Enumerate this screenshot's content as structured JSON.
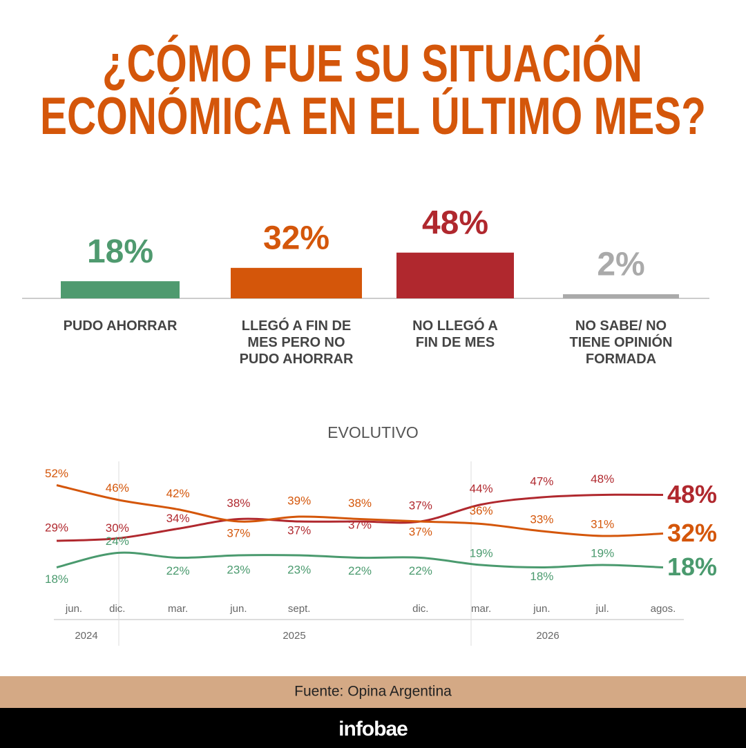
{
  "title": [
    "¿CÓMO FUE SU SITUACIÓN",
    "ECONÓMICA EN EL ÚLTIMO MES?"
  ],
  "chart_data": [
    {
      "type": "bar",
      "categories": [
        "PUDO AHORRAR",
        "LLEGÓ A FIN DE MES PERO NO PUDO AHORRAR",
        "NO LLEGÓ A FIN DE MES",
        "NO SABE/ NO TIENE OPINIÓN FORMADA"
      ],
      "values": [
        18,
        32,
        48,
        2
      ],
      "value_labels": [
        "18%",
        "32%",
        "48%",
        "2%"
      ],
      "colors": [
        "#4f9a6f",
        "#d4560a",
        "#b0282e",
        "#aaaaaa"
      ],
      "ylim": [
        0,
        50
      ]
    },
    {
      "type": "line",
      "title": "EVOLUTIVO",
      "categories": [
        "jun.",
        "dic.",
        "mar.",
        "jun.",
        "sept.",
        null,
        "dic.",
        "mar.",
        "jun.",
        "jul.",
        "agos."
      ],
      "years": [
        "2024",
        "2025",
        "2026"
      ],
      "ylim": [
        15,
        55
      ],
      "series": [
        {
          "color": "#b0282e",
          "values": [
            29,
            30,
            34,
            38,
            37,
            37,
            37,
            44,
            47,
            48,
            48
          ],
          "value_labels": [
            "29%",
            "30%",
            "34%",
            "38%",
            "37%",
            "37%",
            "37%",
            "44%",
            "47%",
            "48%",
            "48%"
          ]
        },
        {
          "color": "#d4560a",
          "values": [
            52,
            46,
            42,
            37,
            39,
            38,
            37,
            36,
            33,
            31,
            32
          ],
          "value_labels": [
            "52%",
            "46%",
            "42%",
            "37%",
            "39%",
            "38%",
            "37%",
            "36%",
            "33%",
            "31%",
            "32%"
          ]
        },
        {
          "color": "#4a9a6e",
          "values": [
            18,
            24,
            22,
            23,
            23,
            22,
            22,
            19,
            18,
            19,
            18
          ],
          "value_labels": [
            "18%",
            "24%",
            "22%",
            "23%",
            "23%",
            "22%",
            "22%",
            "19%",
            "18%",
            "19%",
            "18%"
          ]
        }
      ]
    }
  ],
  "source": "Fuente: Opina Argentina",
  "brand": "infobae"
}
